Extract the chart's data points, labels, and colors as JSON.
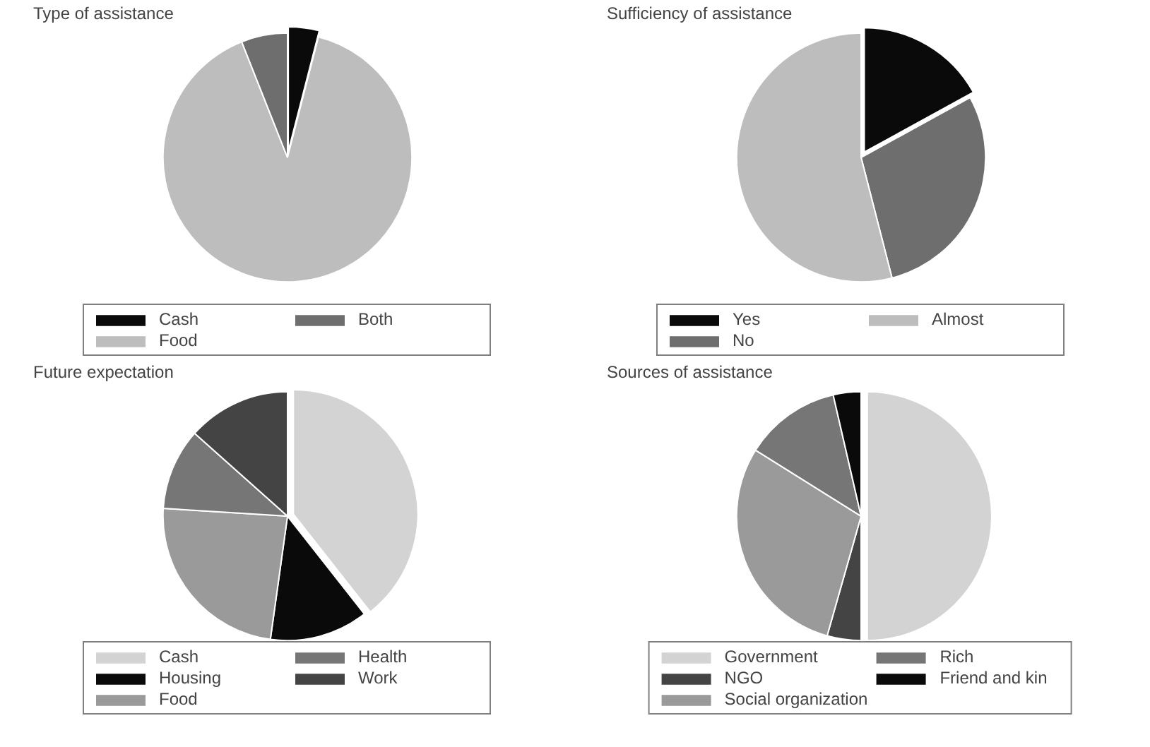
{
  "chart_data": [
    {
      "type": "pie",
      "title": "Type of assistance",
      "categories": [
        "Cash",
        "Food",
        "Both"
      ],
      "values": [
        4,
        90,
        6
      ],
      "colors": [
        "#0a0a0a",
        "#bdbdbd",
        "#6e6e6e"
      ],
      "legend": "bottom"
    },
    {
      "type": "pie",
      "title": "Sufficiency of assistance",
      "categories": [
        "Yes",
        "No",
        "Almost"
      ],
      "values": [
        17,
        29,
        54
      ],
      "colors": [
        "#0a0a0a",
        "#6e6e6e",
        "#bdbdbd"
      ],
      "legend": "bottom"
    },
    {
      "type": "pie",
      "title": "Future expectation",
      "categories": [
        "Cash",
        "Housing",
        "Food",
        "Health",
        "Work"
      ],
      "values": [
        39.4,
        12.8,
        23.8,
        10.6,
        13.4
      ],
      "colors": [
        "#d3d3d3",
        "#0a0a0a",
        "#9a9a9a",
        "#767676",
        "#444444"
      ],
      "legend": "bottom"
    },
    {
      "type": "pie",
      "title": "Sources of assistance",
      "categories": [
        "Government",
        "NGO",
        "Social organization",
        "Rich",
        "Friend and kin"
      ],
      "values": [
        50,
        4.4,
        29.5,
        12.5,
        3.6
      ],
      "colors": [
        "#d3d3d3",
        "#444444",
        "#9a9a9a",
        "#767676",
        "#0a0a0a"
      ],
      "legend": "bottom"
    }
  ]
}
